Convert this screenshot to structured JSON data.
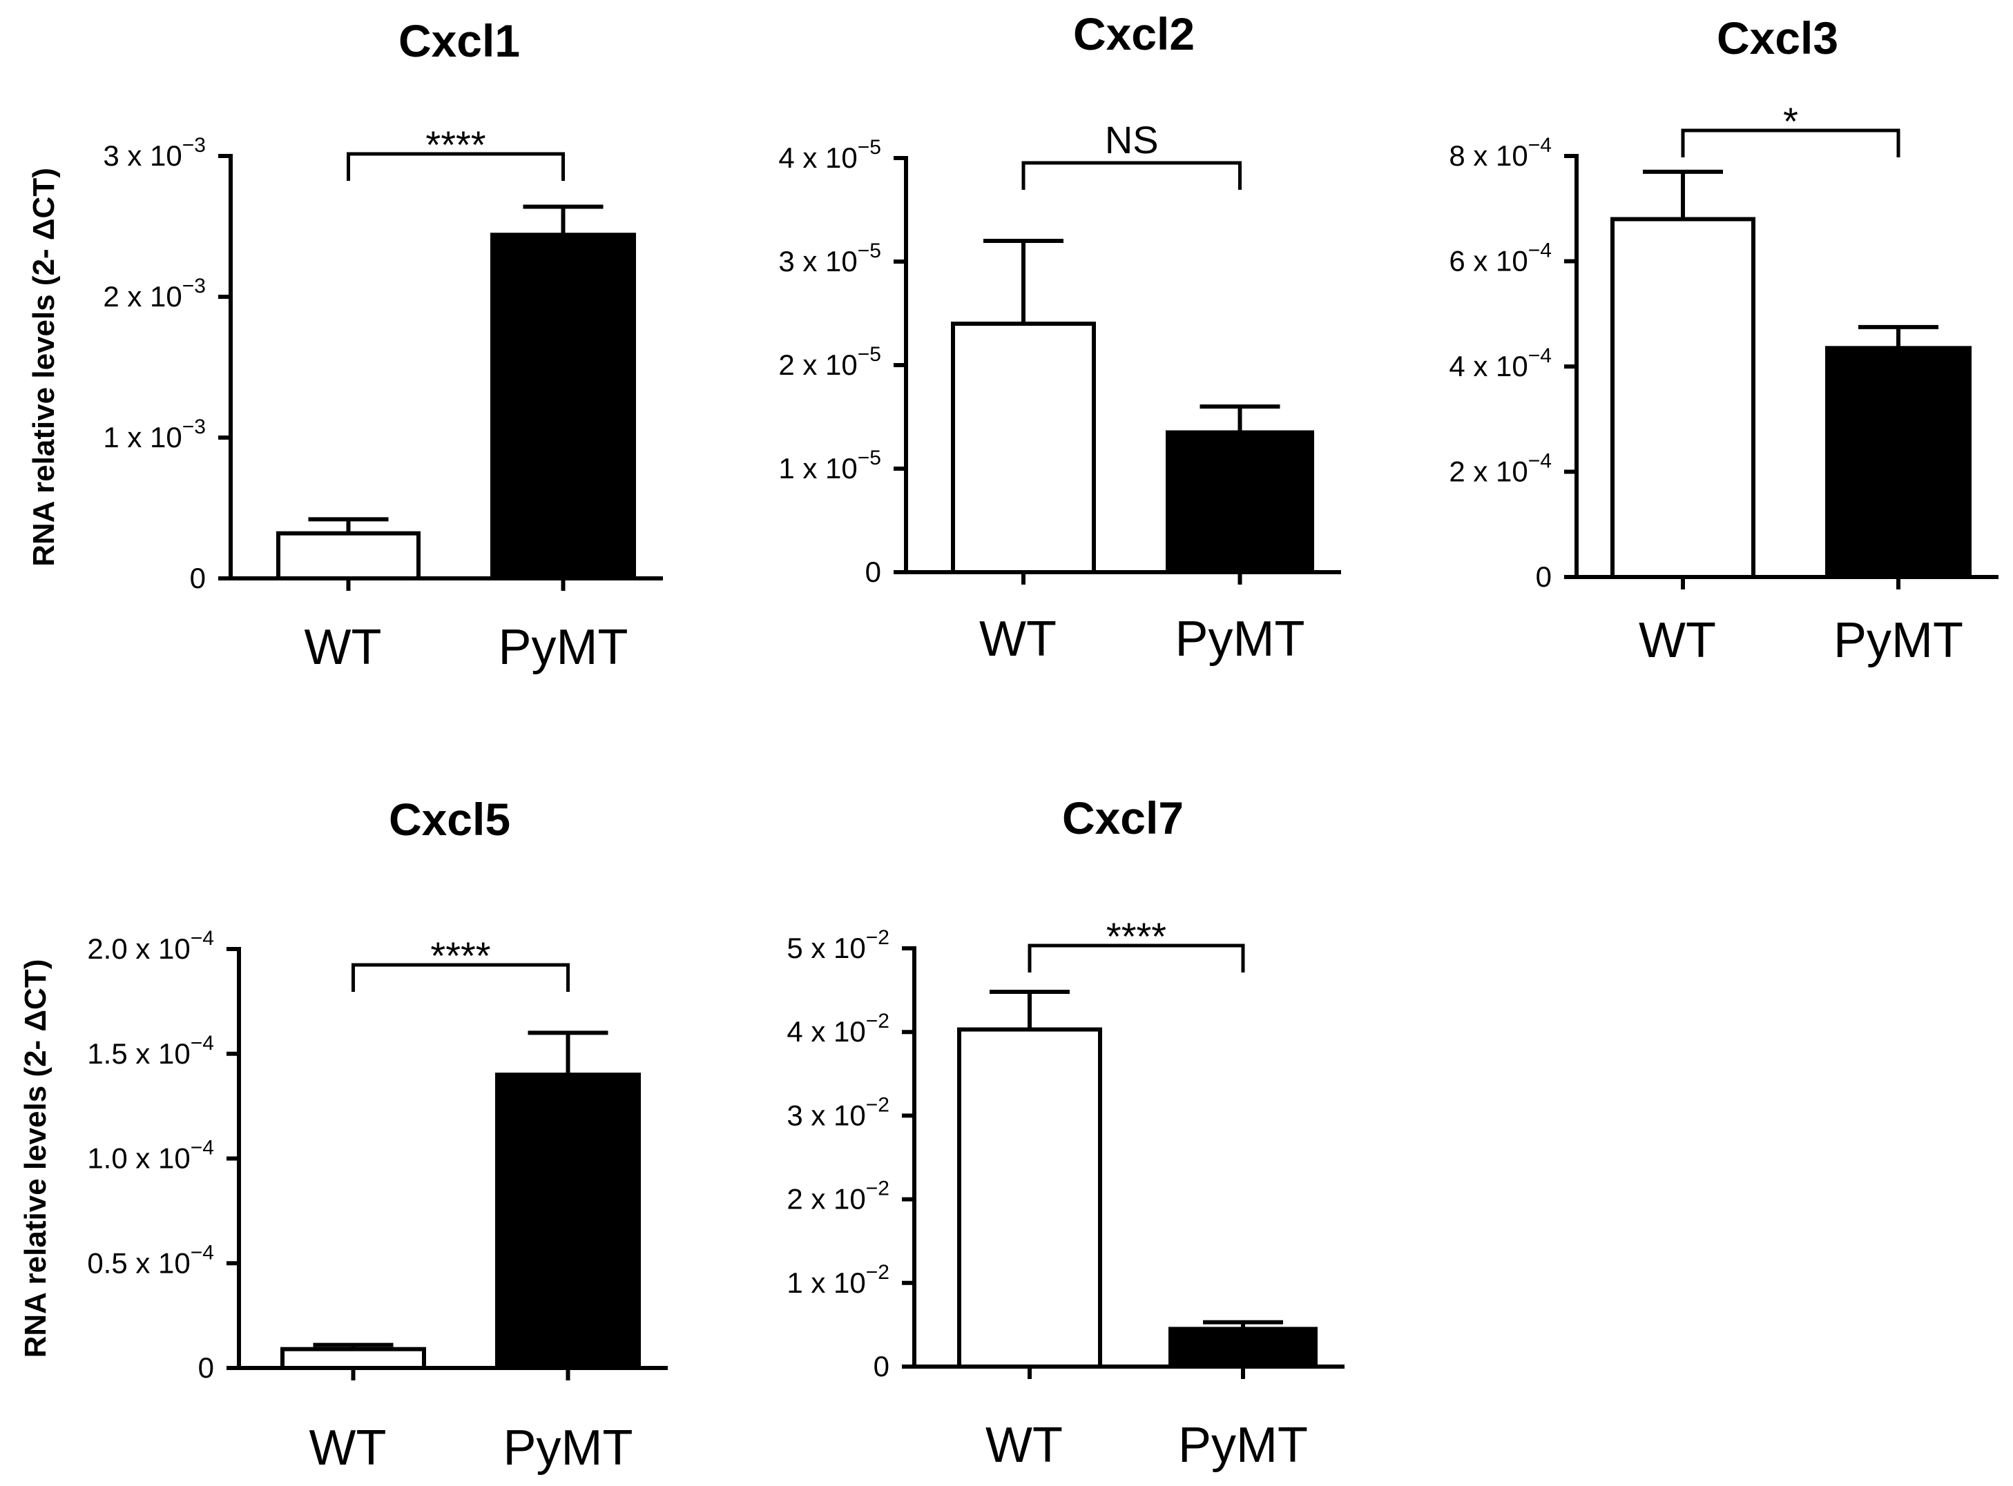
{
  "chart_data": [
    {
      "type": "bar",
      "title": "Cxcl1",
      "ylabel": "RNA relative levels (2- ΔCT)",
      "categories": [
        "WT",
        "PyMT"
      ],
      "values": [
        0.00032,
        0.00244
      ],
      "errors": [
        0.0001,
        0.0002
      ],
      "bar_colors": [
        "#ffffff",
        "#000000"
      ],
      "ylim": [
        0,
        0.003
      ],
      "yticks": [
        {
          "value": 0,
          "mantissa": "0",
          "exponent": ""
        },
        {
          "value": 0.001,
          "mantissa": "1 x 10",
          "exponent": "−3"
        },
        {
          "value": 0.002,
          "mantissa": "2 x 10",
          "exponent": "−3"
        },
        {
          "value": 0.003,
          "mantissa": "3 x 10",
          "exponent": "−3"
        }
      ],
      "significance": "****"
    },
    {
      "type": "bar",
      "title": "Cxcl2",
      "ylabel": "",
      "categories": [
        "WT",
        "PyMT"
      ],
      "values": [
        2.4e-05,
        1.35e-05
      ],
      "errors": [
        8e-06,
        2.5e-06
      ],
      "bar_colors": [
        "#ffffff",
        "#000000"
      ],
      "ylim": [
        0,
        4e-05
      ],
      "yticks": [
        {
          "value": 0,
          "mantissa": "0",
          "exponent": ""
        },
        {
          "value": 1e-05,
          "mantissa": "1 x 10",
          "exponent": "−5"
        },
        {
          "value": 2e-05,
          "mantissa": "2 x 10",
          "exponent": "−5"
        },
        {
          "value": 3e-05,
          "mantissa": "3 x 10",
          "exponent": "−5"
        },
        {
          "value": 4e-05,
          "mantissa": "4 x 10",
          "exponent": "−5"
        }
      ],
      "significance": "NS"
    },
    {
      "type": "bar",
      "title": "Cxcl3",
      "ylabel": "",
      "categories": [
        "WT",
        "PyMT"
      ],
      "values": [
        0.00068,
        0.000435
      ],
      "errors": [
        9e-05,
        4e-05
      ],
      "bar_colors": [
        "#ffffff",
        "#000000"
      ],
      "ylim": [
        0,
        0.0008
      ],
      "yticks": [
        {
          "value": 0,
          "mantissa": "0",
          "exponent": ""
        },
        {
          "value": 0.0002,
          "mantissa": "2 x 10",
          "exponent": "−4"
        },
        {
          "value": 0.0004,
          "mantissa": "4 x 10",
          "exponent": "−4"
        },
        {
          "value": 0.0006,
          "mantissa": "6 x 10",
          "exponent": "−4"
        },
        {
          "value": 0.0008,
          "mantissa": "8 x 10",
          "exponent": "−4"
        }
      ],
      "significance": "*"
    },
    {
      "type": "bar",
      "title": "Cxcl5",
      "ylabel": "RNA relative levels (2- ΔCT)",
      "categories": [
        "WT",
        "PyMT"
      ],
      "values": [
        9e-06,
        0.00014
      ],
      "errors": [
        2e-06,
        2e-05
      ],
      "bar_colors": [
        "#ffffff",
        "#000000"
      ],
      "ylim": [
        0,
        0.0002
      ],
      "yticks": [
        {
          "value": 0,
          "mantissa": "0",
          "exponent": ""
        },
        {
          "value": 5e-05,
          "mantissa": "0.5 x 10",
          "exponent": "−4"
        },
        {
          "value": 0.0001,
          "mantissa": "1.0 x 10",
          "exponent": "−4"
        },
        {
          "value": 0.00015,
          "mantissa": "1.5 x 10",
          "exponent": "−4"
        },
        {
          "value": 0.0002,
          "mantissa": "2.0 x 10",
          "exponent": "−4"
        }
      ],
      "significance": "****"
    },
    {
      "type": "bar",
      "title": "Cxcl7",
      "ylabel": "",
      "categories": [
        "WT",
        "PyMT"
      ],
      "values": [
        0.0403,
        0.0045
      ],
      "errors": [
        0.0045,
        0.0008
      ],
      "bar_colors": [
        "#ffffff",
        "#000000"
      ],
      "ylim": [
        0,
        0.05
      ],
      "yticks": [
        {
          "value": 0,
          "mantissa": "0",
          "exponent": ""
        },
        {
          "value": 0.01,
          "mantissa": "1 x 10",
          "exponent": "−2"
        },
        {
          "value": 0.02,
          "mantissa": "2 x 10",
          "exponent": "−2"
        },
        {
          "value": 0.03,
          "mantissa": "3 x 10",
          "exponent": "−2"
        },
        {
          "value": 0.04,
          "mantissa": "4 x 10",
          "exponent": "−2"
        },
        {
          "value": 0.05,
          "mantissa": "5 x 10",
          "exponent": "−2"
        }
      ],
      "significance": "****"
    }
  ]
}
